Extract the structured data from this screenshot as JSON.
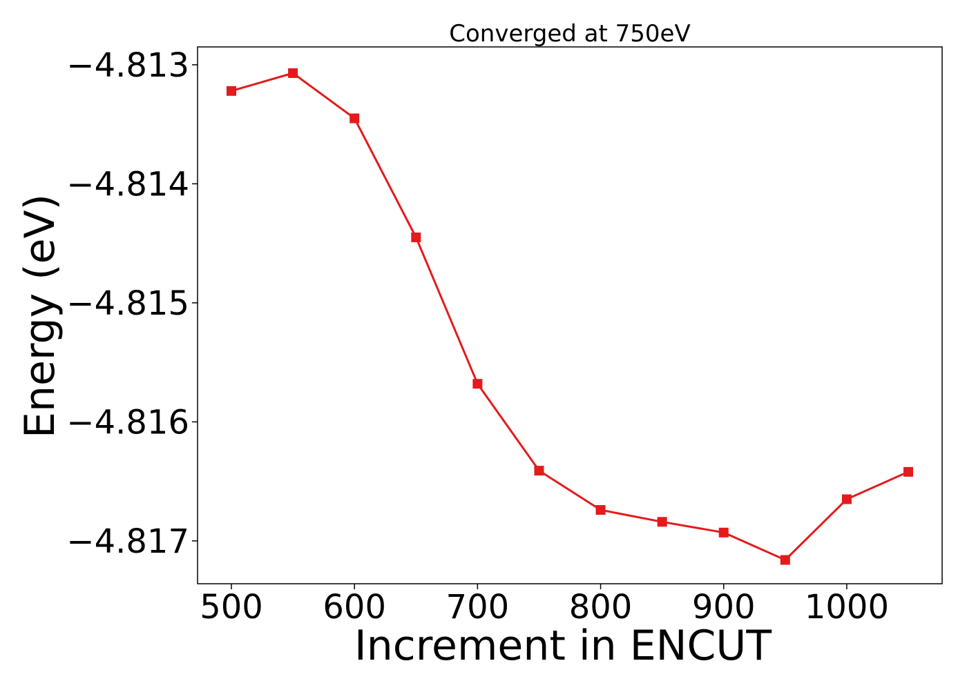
{
  "chart_data": {
    "type": "line",
    "title": "Converged at 750eV",
    "xlabel": "Increment in ENCUT",
    "ylabel": "Energy (eV)",
    "x": [
      500,
      550,
      600,
      650,
      700,
      750,
      800,
      850,
      900,
      950,
      1000,
      1050
    ],
    "series": [
      {
        "values": [
          -4.81322,
          -4.81307,
          -4.81345,
          -4.81445,
          -4.81568,
          -4.81641,
          -4.81674,
          -4.81684,
          -4.81693,
          -4.81716,
          -4.81665,
          -4.81642
        ],
        "color": "#e41a1c",
        "marker": "square"
      }
    ],
    "xlim": [
      472.5,
      1077.5
    ],
    "ylim": [
      -4.81736,
      -4.81285
    ],
    "xticks": [
      500,
      600,
      700,
      800,
      900,
      1000
    ],
    "xtick_labels": [
      "500",
      "600",
      "700",
      "800",
      "900",
      "1000"
    ],
    "yticks": [
      -4.813,
      -4.814,
      -4.815,
      -4.816,
      -4.817
    ],
    "ytick_labels": [
      "−4.813",
      "−4.814",
      "−4.815",
      "−4.816",
      "−4.817"
    ],
    "grid": false,
    "legend": "none"
  }
}
